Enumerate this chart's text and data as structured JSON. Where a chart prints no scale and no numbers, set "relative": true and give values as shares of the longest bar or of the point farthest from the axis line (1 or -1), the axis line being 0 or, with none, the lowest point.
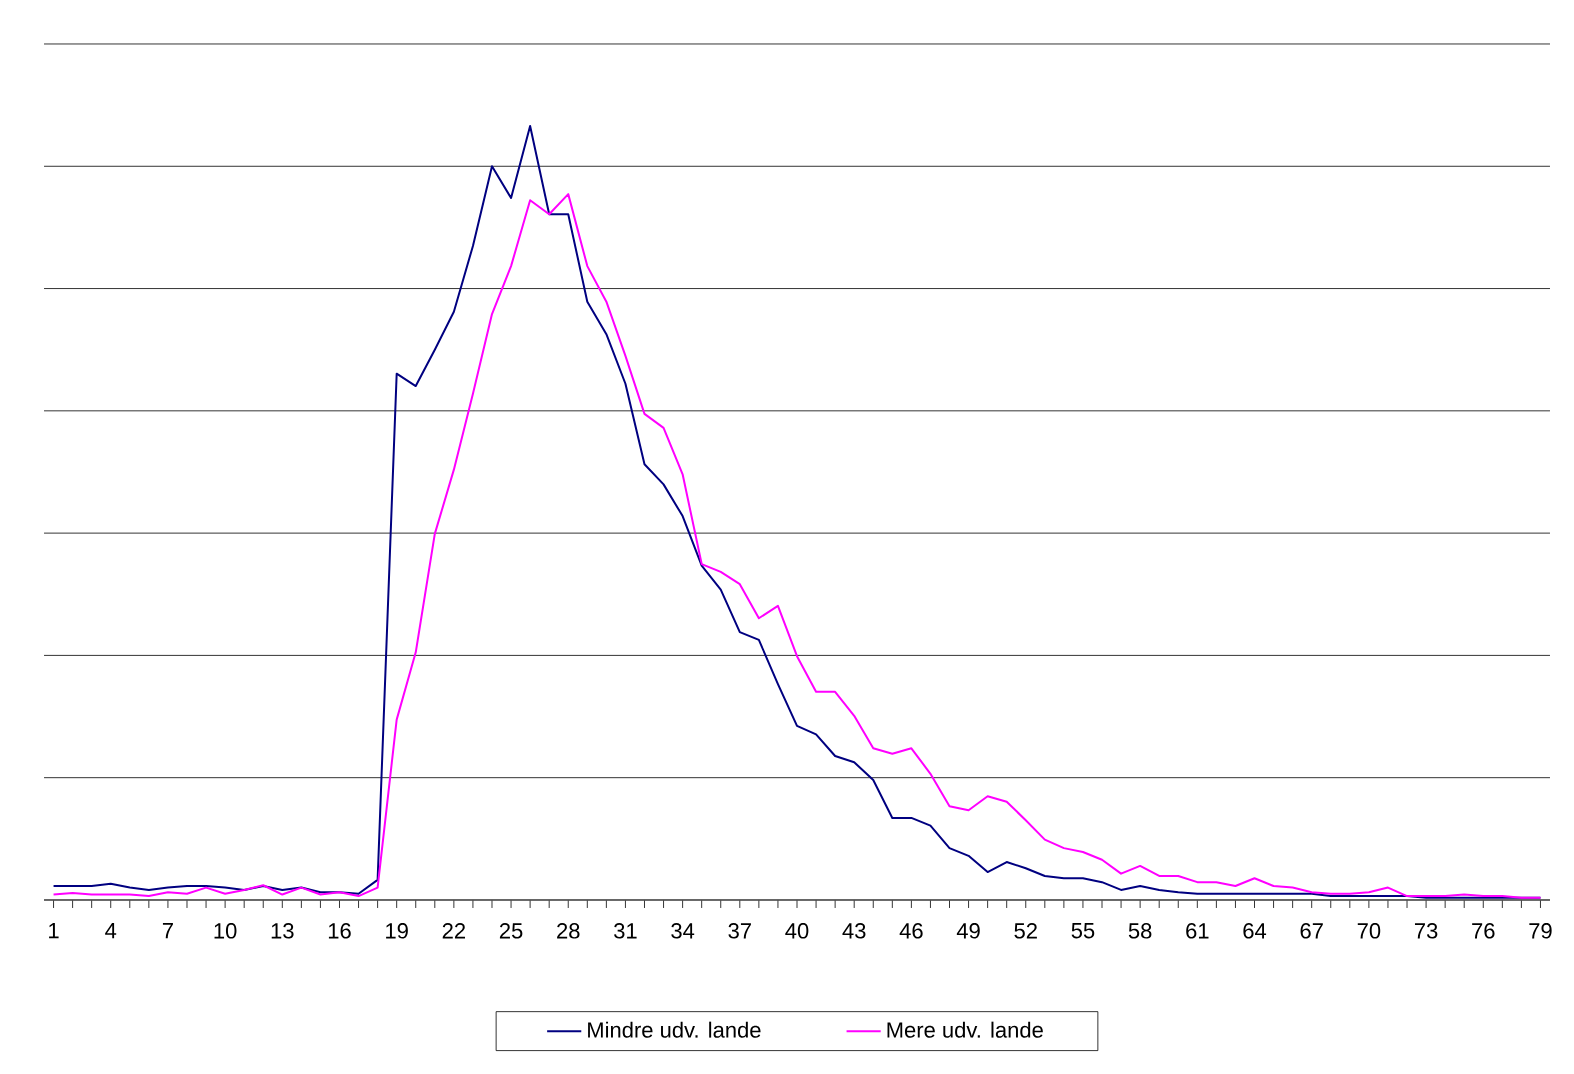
{
  "chart_data": {
    "type": "line",
    "relative": true,
    "grid": "y",
    "legend": "bottom",
    "marker": "none",
    "line_style": "solid",
    "tick_labels": "x",
    "categories": [
      "1",
      null,
      null,
      "4",
      null,
      null,
      "7",
      null,
      null,
      "10",
      null,
      null,
      "13",
      null,
      null,
      "16",
      null,
      null,
      "19",
      null,
      null,
      "22",
      null,
      null,
      "25",
      null,
      null,
      "28",
      null,
      null,
      "31",
      null,
      null,
      "34",
      null,
      null,
      "37",
      null,
      null,
      "40",
      null,
      null,
      "43",
      null,
      null,
      "46",
      null,
      null,
      "49",
      null,
      null,
      "52",
      null,
      null,
      "55",
      null,
      null,
      "58",
      null,
      null,
      "61",
      null,
      null,
      "64",
      null,
      null,
      "67",
      null,
      null,
      "70",
      null,
      null,
      "73",
      null,
      null,
      "76",
      null,
      null,
      "79"
    ],
    "series": [
      {
        "name": "Mindre udv. lande",
        "color": "#000080",
        "values": [
          0.018,
          0.018,
          0.018,
          0.021,
          0.016,
          0.013,
          0.016,
          0.018,
          0.018,
          0.016,
          0.013,
          0.018,
          0.013,
          0.016,
          0.01,
          0.01,
          0.008,
          0.026,
          0.68,
          0.664,
          0.711,
          0.76,
          0.845,
          0.948,
          0.907,
          1,
          0.886,
          0.886,
          0.773,
          0.731,
          0.667,
          0.563,
          0.537,
          0.496,
          0.432,
          0.401,
          0.346,
          0.336,
          0.279,
          0.225,
          0.214,
          0.186,
          0.178,
          0.155,
          0.106,
          0.106,
          0.096,
          0.067,
          0.057,
          0.036,
          0.049,
          0.041,
          0.031,
          0.028,
          0.028,
          0.023,
          0.013,
          0.018,
          0.013,
          0.01,
          0.008,
          0.008,
          0.008,
          0.008,
          0.008,
          0.008,
          0.008,
          0.005,
          0.005,
          0.005,
          0.005,
          0.005,
          0.003,
          0.003,
          0.003,
          0.003,
          0.003,
          0.003,
          0.003
        ]
      },
      {
        "name": "Mere udv. lande",
        "color": "#ff00ff",
        "values": [
          0.007,
          0.009,
          0.007,
          0.007,
          0.007,
          0.005,
          0.01,
          0.008,
          0.016,
          0.008,
          0.013,
          0.019,
          0.007,
          0.016,
          0.007,
          0.01,
          0.005,
          0.016,
          0.233,
          0.32,
          0.473,
          0.556,
          0.654,
          0.757,
          0.819,
          0.904,
          0.886,
          0.912,
          0.819,
          0.773,
          0.703,
          0.628,
          0.61,
          0.55,
          0.434,
          0.424,
          0.408,
          0.364,
          0.38,
          0.315,
          0.269,
          0.269,
          0.238,
          0.196,
          0.189,
          0.196,
          0.163,
          0.121,
          0.116,
          0.134,
          0.127,
          0.103,
          0.078,
          0.067,
          0.062,
          0.052,
          0.034,
          0.044,
          0.031,
          0.031,
          0.023,
          0.023,
          0.018,
          0.028,
          0.018,
          0.016,
          0.01,
          0.008,
          0.008,
          0.01,
          0.016,
          0.005,
          0.005,
          0.005,
          0.007,
          0.005,
          0.005,
          0.003,
          0.003
        ]
      }
    ]
  }
}
